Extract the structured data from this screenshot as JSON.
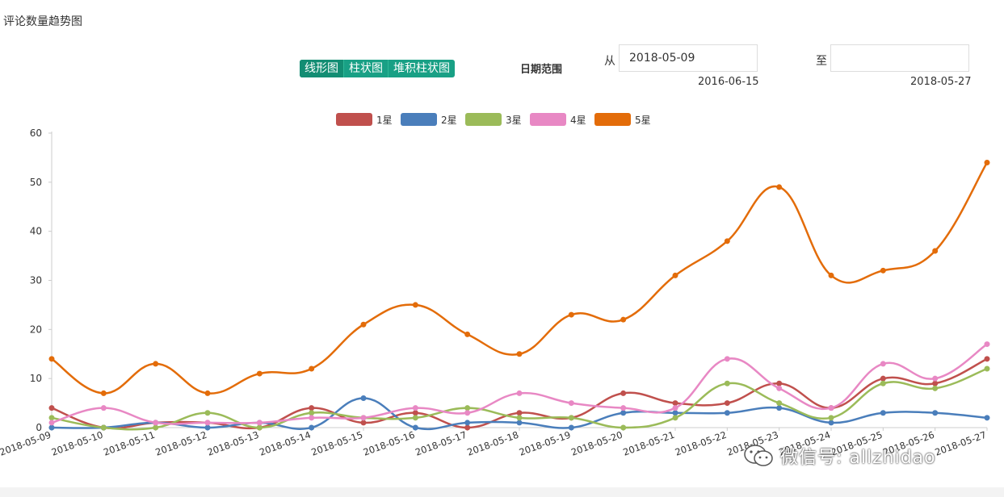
{
  "page": {
    "title": "评论数量趋势图"
  },
  "toolbar": {
    "chart_types": [
      "线形图",
      "柱状图",
      "堆积柱状图"
    ],
    "date_range_label": "日期范围",
    "from_label": "从",
    "from_value": "2018-05-09",
    "from_hint": "2016-06-15",
    "to_label": "至",
    "to_value": "",
    "to_hint": "2018-05-27"
  },
  "watermark": {
    "text": "微信号: allzhidao",
    "icon": "wechat-logo-icon"
  },
  "chart_data": {
    "type": "line",
    "smooth": true,
    "categories": [
      "2018-05-09",
      "2018-05-10",
      "2018-05-11",
      "2018-05-12",
      "2018-05-13",
      "2018-05-14",
      "2018-05-15",
      "2018-05-16",
      "2018-05-17",
      "2018-05-18",
      "2018-05-19",
      "2018-05-20",
      "2018-05-21",
      "2018-05-22",
      "2018-05-23",
      "2018-05-24",
      "2018-05-25",
      "2018-05-26",
      "2018-05-27"
    ],
    "ylim": [
      0,
      60
    ],
    "yticks": [
      0,
      10,
      20,
      30,
      40,
      50,
      60
    ],
    "grid": false,
    "legend_position": "top-center",
    "series": [
      {
        "name": "1星",
        "color": "#c0504d",
        "values": [
          4,
          0,
          1,
          1,
          0,
          4,
          1,
          3,
          0,
          3,
          2,
          7,
          5,
          5,
          9,
          4,
          10,
          9,
          14
        ]
      },
      {
        "name": "2星",
        "color": "#4a7ebb",
        "values": [
          0,
          0,
          1,
          0,
          1,
          0,
          6,
          0,
          1,
          1,
          0,
          3,
          3,
          3,
          4,
          1,
          3,
          3,
          2
        ]
      },
      {
        "name": "3星",
        "color": "#9bbb59",
        "values": [
          2,
          0,
          0,
          3,
          0,
          3,
          2,
          2,
          4,
          2,
          2,
          0,
          2,
          9,
          5,
          2,
          9,
          8,
          12
        ]
      },
      {
        "name": "4星",
        "color": "#e888c4",
        "values": [
          1,
          4,
          1,
          1,
          1,
          2,
          2,
          4,
          3,
          7,
          5,
          4,
          4,
          14,
          8,
          4,
          13,
          10,
          17
        ]
      },
      {
        "name": "5星",
        "color": "#e36c09",
        "values": [
          14,
          7,
          13,
          7,
          11,
          12,
          21,
          25,
          19,
          15,
          23,
          22,
          31,
          38,
          49,
          31,
          32,
          36,
          54
        ]
      }
    ]
  }
}
